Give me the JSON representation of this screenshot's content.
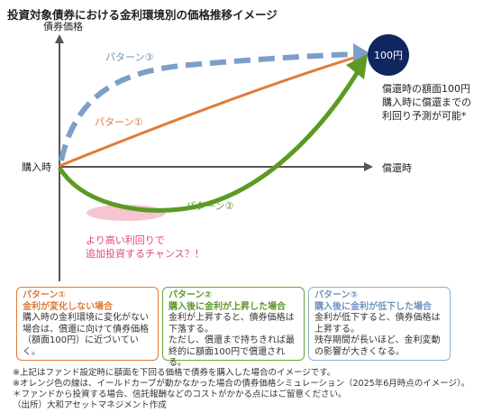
{
  "title": "投資対象債券における金利環境別の価格推移イメージ",
  "axis": {
    "y_label": "債券価格",
    "origin_label": "購入時",
    "x_label": "償還時"
  },
  "patterns": {
    "p1": "パターン①",
    "p2": "パターン②",
    "p3": "パターン③"
  },
  "face_value_badge": "100円",
  "redemption_note": [
    "償還時の額面100円",
    "購入時に償還までの",
    "利回り予測が可能*"
  ],
  "chance_note": [
    "より高い利回りで",
    "追加投資するチャンス？！"
  ],
  "boxes": [
    {
      "tag": "パターン①",
      "heading": "金利が変化しない場合",
      "body": "購入時の金利環境に変化がない\n場合は、償還に向けて債券価格\n（額面100円）に近づいていく。"
    },
    {
      "tag": "パターン②",
      "heading": "購入後に金利が上昇した場合",
      "body": "金利が上昇すると、債券価格は\n下落する。\nただし、償還まで持ちきれば最\n終的に額面100円で償還される。"
    },
    {
      "tag": "パターン③",
      "heading": "購入後に金利が低下した場合",
      "body": "金利が低下すると、債券価格は\n上昇する。\n残存期間が長いほど、金利変動\nの影響が大きくなる。"
    }
  ],
  "footnotes": [
    "※上記はファンド設定時に額面を下回る価格で債券を購入した場合のイメージです。",
    "※オレンジ色の線は、イールドカーブが動かなかった場合の債券価格シミュレーション（2025年6月時点のイメージ）。",
    "＊ファンドから投資する場合、信託報酬などのコストがかかる点にはご留意ください。",
    "（出所）大和アセットマネジメント作成"
  ],
  "colors": {
    "orange": "#e07b39",
    "green": "#5c9a24",
    "blue_dashed": "#7c9fc8",
    "navy": "#102660",
    "pink": "#f6c6cf"
  }
}
